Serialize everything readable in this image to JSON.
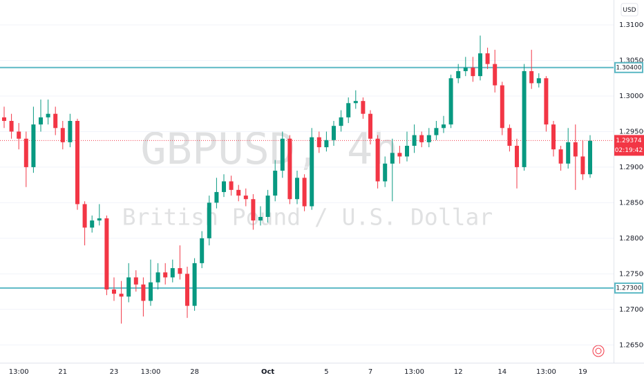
{
  "chart_data": {
    "type": "candlestick",
    "watermark_title": "GBPUSD, 4h",
    "watermark_subtitle": "British Pound / U.S. Dollar",
    "currency": "USD",
    "categories": [
      null,
      null,
      "13:00",
      null,
      null,
      null,
      null,
      null,
      "21",
      null,
      null,
      null,
      null,
      null,
      null,
      "23",
      null,
      null,
      null,
      null,
      "13:00",
      null,
      null,
      null,
      null,
      null,
      "28",
      null,
      null,
      null,
      null,
      null,
      null,
      null,
      null,
      null,
      "Oct",
      null,
      null,
      null,
      null,
      null,
      null,
      null,
      "5",
      null,
      null,
      null,
      null,
      null,
      "7",
      null,
      null,
      null,
      null,
      null,
      "13:00",
      null,
      null,
      null,
      null,
      null,
      "12",
      null,
      null,
      null,
      null,
      null,
      "14",
      null,
      null,
      null,
      null,
      null,
      "13:00",
      null,
      null,
      null,
      null,
      "19",
      null
    ],
    "open": [
      1.297,
      1.2965,
      1.295,
      1.294,
      1.29,
      1.296,
      1.297,
      1.2975,
      1.2955,
      1.2935,
      1.2965,
      1.2848,
      1.2815,
      1.2825,
      1.2828,
      1.2728,
      1.2722,
      1.2718,
      1.2745,
      1.2735,
      1.2712,
      1.2738,
      1.2752,
      1.2745,
      1.2758,
      1.275,
      1.2705,
      1.2765,
      1.28,
      1.285,
      1.2865,
      1.288,
      1.2868,
      1.286,
      1.2855,
      1.2825,
      1.283,
      1.286,
      1.2895,
      1.294,
      1.2855,
      1.2885,
      1.2845,
      1.2942,
      1.2928,
      1.2938,
      1.2958,
      1.297,
      1.299,
      1.2993,
      1.2975,
      1.294,
      1.288,
      1.2905,
      1.292,
      1.2915,
      1.293,
      1.2945,
      1.2935,
      1.2945,
      1.2955,
      1.296,
      1.3025,
      1.3035,
      1.304,
      1.3028,
      1.306,
      1.3045,
      1.3015,
      1.2955,
      1.293,
      1.29,
      1.3035,
      1.3018,
      1.3025,
      1.296,
      1.2925,
      1.2905,
      1.2935,
      1.2915,
      1.289
    ],
    "high": [
      1.2985,
      1.2975,
      1.2962,
      1.295,
      1.2985,
      1.2995,
      1.2995,
      1.2985,
      1.2965,
      1.2975,
      1.2968,
      1.2852,
      1.2832,
      1.2848,
      1.2832,
      1.2745,
      1.274,
      1.2765,
      1.2755,
      1.2745,
      1.277,
      1.2765,
      1.2765,
      1.277,
      1.279,
      1.276,
      1.2772,
      1.281,
      1.286,
      1.2885,
      1.289,
      1.2888,
      1.2875,
      1.287,
      1.2862,
      1.2845,
      1.2868,
      1.291,
      1.295,
      1.2945,
      1.2895,
      1.289,
      1.2955,
      1.295,
      1.295,
      1.2965,
      1.298,
      1.2998,
      1.3008,
      1.2998,
      1.298,
      1.2945,
      1.2915,
      1.294,
      1.293,
      1.295,
      1.296,
      1.295,
      1.2955,
      1.2965,
      1.2972,
      1.303,
      1.3045,
      1.3055,
      1.3055,
      1.3085,
      1.3068,
      1.3065,
      1.302,
      1.296,
      1.294,
      1.3045,
      1.3065,
      1.3032,
      1.3028,
      1.2965,
      1.293,
      1.2955,
      1.296,
      1.2938,
      1.2945
    ],
    "low": [
      1.2955,
      1.294,
      1.2925,
      1.2872,
      1.2892,
      1.295,
      1.296,
      1.2945,
      1.2925,
      1.2928,
      1.284,
      1.279,
      1.2808,
      1.2818,
      1.272,
      1.2712,
      1.268,
      1.271,
      1.2725,
      1.269,
      1.2705,
      1.2728,
      1.2735,
      1.2738,
      1.2742,
      1.2688,
      1.2698,
      1.2758,
      1.279,
      1.2842,
      1.2858,
      1.286,
      1.2852,
      1.2845,
      1.2812,
      1.2818,
      1.2822,
      1.2852,
      1.2885,
      1.2848,
      1.2848,
      1.2838,
      1.284,
      1.292,
      1.2922,
      1.293,
      1.295,
      1.2962,
      1.2982,
      1.2968,
      1.2932,
      1.287,
      1.2872,
      1.2852,
      1.2905,
      1.2908,
      1.292,
      1.2928,
      1.2928,
      1.2938,
      1.2948,
      1.2955,
      1.3018,
      1.3028,
      1.302,
      1.3022,
      1.3038,
      1.3005,
      1.2945,
      1.2922,
      1.287,
      1.2895,
      1.301,
      1.3012,
      1.295,
      1.2915,
      1.2895,
      1.2898,
      1.2868,
      1.2882,
      1.2885
    ],
    "close": [
      1.2965,
      1.295,
      1.294,
      1.29,
      1.296,
      1.297,
      1.2975,
      1.2955,
      1.2935,
      1.2965,
      1.2848,
      1.2815,
      1.2825,
      1.2828,
      1.2728,
      1.2722,
      1.2718,
      1.2745,
      1.2735,
      1.2712,
      1.2738,
      1.2752,
      1.2745,
      1.2758,
      1.275,
      1.2705,
      1.2765,
      1.28,
      1.285,
      1.2865,
      1.288,
      1.2868,
      1.286,
      1.2855,
      1.2825,
      1.283,
      1.286,
      1.2895,
      1.294,
      1.2855,
      1.2885,
      1.2845,
      1.2942,
      1.2928,
      1.2938,
      1.2958,
      1.297,
      1.299,
      1.2993,
      1.2975,
      1.294,
      1.288,
      1.2905,
      1.292,
      1.2915,
      1.293,
      1.2945,
      1.2935,
      1.2945,
      1.2955,
      1.296,
      1.3025,
      1.3035,
      1.304,
      1.3028,
      1.306,
      1.3045,
      1.3015,
      1.2955,
      1.293,
      1.29,
      1.3035,
      1.3018,
      1.3025,
      1.296,
      1.2925,
      1.2905,
      1.2935,
      1.2915,
      1.289,
      1.2937
    ],
    "up_color": "#089981",
    "down_color": "#f23645",
    "ylim": [
      1.2625,
      1.3135
    ],
    "yticks": [
      {
        "value": 1.31,
        "label": "1.31000"
      },
      {
        "value": 1.305,
        "label": "1.30500"
      },
      {
        "value": 1.3,
        "label": "1.30000"
      },
      {
        "value": 1.295,
        "label": "1.29500"
      },
      {
        "value": 1.29,
        "label": "1.29000"
      },
      {
        "value": 1.285,
        "label": "1.28500"
      },
      {
        "value": 1.28,
        "label": "1.28000"
      },
      {
        "value": 1.275,
        "label": "1.27500"
      },
      {
        "value": 1.27,
        "label": "1.27000"
      },
      {
        "value": 1.265,
        "label": "1.26500"
      }
    ],
    "levels": [
      {
        "value": 1.304,
        "label": "1.30400"
      },
      {
        "value": 1.273,
        "label": "1.27300"
      }
    ],
    "level_color": "#5bb8c4",
    "last_price": {
      "value": 1.29374,
      "label": "1.29374"
    },
    "countdown": "02:19:42",
    "grid": true
  }
}
